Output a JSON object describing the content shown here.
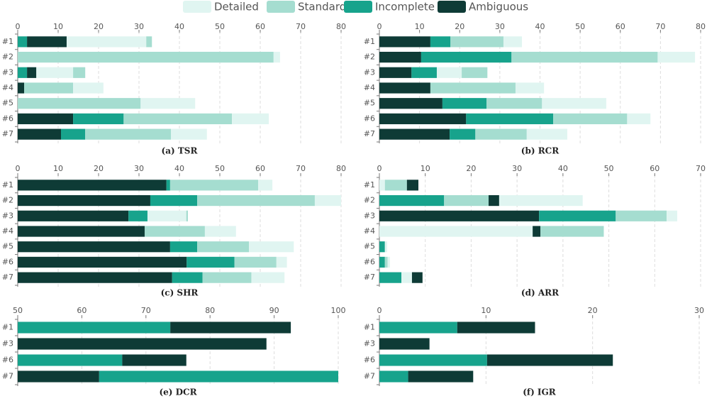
{
  "legend": [
    {
      "name": "Detailed",
      "color": "#e0f5f1"
    },
    {
      "name": "Standard",
      "color": "#a5ddd0"
    },
    {
      "name": "Incomplete",
      "color": "#17a38c"
    },
    {
      "name": "Ambiguous",
      "color": "#0e3b36"
    }
  ],
  "chart_data": [
    {
      "type": "stacked-bar",
      "title": "(a) TSR",
      "xlim": [
        0,
        80
      ],
      "xticks": [
        0,
        10,
        20,
        30,
        40,
        50,
        60,
        70,
        80
      ],
      "bars": [
        {
          "category": "#1",
          "segments": [
            {
              "series": "Incomplete",
              "value": 2.3
            },
            {
              "series": "Ambiguous",
              "value": 9.8
            },
            {
              "series": "Detailed",
              "value": 19.7
            },
            {
              "series": "Standard",
              "value": 1.4
            }
          ]
        },
        {
          "category": "#2",
          "segments": [
            {
              "series": "Standard",
              "value": 63.3
            },
            {
              "series": "Detailed",
              "value": 1.6
            }
          ]
        },
        {
          "category": "#3",
          "segments": [
            {
              "series": "Incomplete",
              "value": 2.3
            },
            {
              "series": "Ambiguous",
              "value": 2.3
            },
            {
              "series": "Detailed",
              "value": 9.1
            },
            {
              "series": "Standard",
              "value": 3.0
            }
          ]
        },
        {
          "category": "#4",
          "segments": [
            {
              "series": "Ambiguous",
              "value": 1.6
            },
            {
              "series": "Standard",
              "value": 12.1
            },
            {
              "series": "Detailed",
              "value": 7.5
            }
          ]
        },
        {
          "category": "#5",
          "segments": [
            {
              "series": "Standard",
              "value": 30.4
            },
            {
              "series": "Detailed",
              "value": 13.5
            }
          ]
        },
        {
          "category": "#6",
          "segments": [
            {
              "series": "Ambiguous",
              "value": 13.7
            },
            {
              "series": "Incomplete",
              "value": 12.5
            },
            {
              "series": "Standard",
              "value": 26.8
            },
            {
              "series": "Detailed",
              "value": 9.1
            }
          ]
        },
        {
          "category": "#7",
          "segments": [
            {
              "series": "Ambiguous",
              "value": 10.7
            },
            {
              "series": "Incomplete",
              "value": 6.0
            },
            {
              "series": "Standard",
              "value": 21.2
            },
            {
              "series": "Detailed",
              "value": 8.9
            }
          ]
        }
      ]
    },
    {
      "type": "stacked-bar",
      "title": "(b) RCR",
      "xlim": [
        0,
        80
      ],
      "xticks": [
        0,
        10,
        20,
        30,
        40,
        50,
        60,
        70,
        80
      ],
      "bars": [
        {
          "category": "#1",
          "segments": [
            {
              "series": "Ambiguous",
              "value": 12.7
            },
            {
              "series": "Incomplete",
              "value": 5.0
            },
            {
              "series": "Standard",
              "value": 13.2
            },
            {
              "series": "Detailed",
              "value": 4.6
            }
          ]
        },
        {
          "category": "#2",
          "segments": [
            {
              "series": "Ambiguous",
              "value": 10.4
            },
            {
              "series": "Incomplete",
              "value": 22.5
            },
            {
              "series": "Standard",
              "value": 36.4
            },
            {
              "series": "Detailed",
              "value": 9.3
            }
          ]
        },
        {
          "category": "#3",
          "segments": [
            {
              "series": "Ambiguous",
              "value": 8.0
            },
            {
              "series": "Incomplete",
              "value": 6.3
            },
            {
              "series": "Detailed",
              "value": 6.2
            },
            {
              "series": "Standard",
              "value": 6.4
            }
          ]
        },
        {
          "category": "#4",
          "segments": [
            {
              "series": "Ambiguous",
              "value": 12.7
            },
            {
              "series": "Standard",
              "value": 21.2
            },
            {
              "series": "Detailed",
              "value": 7.1
            }
          ]
        },
        {
          "category": "#5",
          "segments": [
            {
              "series": "Ambiguous",
              "value": 15.7
            },
            {
              "series": "Incomplete",
              "value": 11.0
            },
            {
              "series": "Standard",
              "value": 13.8
            },
            {
              "series": "Detailed",
              "value": 16.0
            }
          ]
        },
        {
          "category": "#6",
          "segments": [
            {
              "series": "Ambiguous",
              "value": 21.6
            },
            {
              "series": "Incomplete",
              "value": 21.7
            },
            {
              "series": "Standard",
              "value": 18.4
            },
            {
              "series": "Detailed",
              "value": 5.8
            }
          ]
        },
        {
          "category": "#7",
          "segments": [
            {
              "series": "Ambiguous",
              "value": 17.5
            },
            {
              "series": "Incomplete",
              "value": 6.4
            },
            {
              "series": "Standard",
              "value": 12.8
            },
            {
              "series": "Detailed",
              "value": 10.1
            }
          ]
        }
      ]
    },
    {
      "type": "stacked-bar",
      "title": "(c) SHR",
      "xlim": [
        0,
        80
      ],
      "xticks": [
        0,
        10,
        20,
        30,
        40,
        50,
        60,
        70,
        80
      ],
      "bars": [
        {
          "category": "#1",
          "segments": [
            {
              "series": "Ambiguous",
              "value": 36.8
            },
            {
              "series": "Incomplete",
              "value": 0.9
            },
            {
              "series": "Standard",
              "value": 21.8
            },
            {
              "series": "Detailed",
              "value": 3.5
            }
          ]
        },
        {
          "category": "#2",
          "segments": [
            {
              "series": "Ambiguous",
              "value": 32.8
            },
            {
              "series": "Incomplete",
              "value": 11.6
            },
            {
              "series": "Standard",
              "value": 29.1
            },
            {
              "series": "Detailed",
              "value": 6.5
            }
          ]
        },
        {
          "category": "#3",
          "segments": [
            {
              "series": "Ambiguous",
              "value": 27.4
            },
            {
              "series": "Incomplete",
              "value": 4.7
            },
            {
              "series": "Detailed",
              "value": 9.6
            },
            {
              "series": "Standard",
              "value": 0.4
            }
          ]
        },
        {
          "category": "#4",
          "segments": [
            {
              "series": "Ambiguous",
              "value": 31.4
            },
            {
              "series": "Standard",
              "value": 14.9
            },
            {
              "series": "Detailed",
              "value": 7.7
            }
          ]
        },
        {
          "category": "#5",
          "segments": [
            {
              "series": "Ambiguous",
              "value": 37.7
            },
            {
              "series": "Incomplete",
              "value": 6.7
            },
            {
              "series": "Standard",
              "value": 12.8
            },
            {
              "series": "Detailed",
              "value": 11.1
            }
          ]
        },
        {
          "category": "#6",
          "segments": [
            {
              "series": "Ambiguous",
              "value": 41.8
            },
            {
              "series": "Incomplete",
              "value": 11.8
            },
            {
              "series": "Standard",
              "value": 10.4
            },
            {
              "series": "Detailed",
              "value": 2.6
            }
          ]
        },
        {
          "category": "#7",
          "segments": [
            {
              "series": "Ambiguous",
              "value": 38.2
            },
            {
              "series": "Incomplete",
              "value": 7.5
            },
            {
              "series": "Standard",
              "value": 12.1
            },
            {
              "series": "Detailed",
              "value": 8.2
            }
          ]
        }
      ]
    },
    {
      "type": "stacked-bar",
      "title": "(d) ARR",
      "xlim": [
        0,
        70
      ],
      "xticks": [
        0,
        10,
        20,
        30,
        40,
        50,
        60,
        70
      ],
      "bars": [
        {
          "category": "#1",
          "segments": [
            {
              "series": "Detailed",
              "value": 1.2
            },
            {
              "series": "Standard",
              "value": 4.8
            },
            {
              "series": "Ambiguous",
              "value": 2.5
            }
          ]
        },
        {
          "category": "#2",
          "segments": [
            {
              "series": "Incomplete",
              "value": 14.1
            },
            {
              "series": "Standard",
              "value": 9.7
            },
            {
              "series": "Ambiguous",
              "value": 2.3
            },
            {
              "series": "Detailed",
              "value": 18.2
            }
          ]
        },
        {
          "category": "#3",
          "segments": [
            {
              "series": "Ambiguous",
              "value": 34.8
            },
            {
              "series": "Incomplete",
              "value": 16.7
            },
            {
              "series": "Standard",
              "value": 11.1
            },
            {
              "series": "Detailed",
              "value": 2.3
            }
          ]
        },
        {
          "category": "#4",
          "segments": [
            {
              "series": "Detailed",
              "value": 33.4
            },
            {
              "series": "Ambiguous",
              "value": 1.7
            },
            {
              "series": "Standard",
              "value": 13.8
            }
          ]
        },
        {
          "category": "#5",
          "segments": [
            {
              "series": "Incomplete",
              "value": 1.2
            },
            {
              "series": "Detailed",
              "value": 0.5
            }
          ]
        },
        {
          "category": "#6",
          "segments": [
            {
              "series": "Incomplete",
              "value": 1.2
            },
            {
              "series": "Standard",
              "value": 0.6
            },
            {
              "series": "Detailed",
              "value": 0.5
            }
          ]
        },
        {
          "category": "#7",
          "segments": [
            {
              "series": "Incomplete",
              "value": 4.8
            },
            {
              "series": "Detailed",
              "value": 2.3
            },
            {
              "series": "Ambiguous",
              "value": 2.3
            }
          ]
        }
      ]
    },
    {
      "type": "stacked-bar",
      "title": "(e) DCR",
      "xlim": [
        50,
        100
      ],
      "xticks": [
        50,
        60,
        70,
        80,
        90,
        100
      ],
      "bars": [
        {
          "category": "#1",
          "segments": [
            {
              "series": "Incomplete",
              "value": 73.8
            },
            {
              "series": "Ambiguous",
              "value": 18.8
            }
          ]
        },
        {
          "category": "#3",
          "segments": [
            {
              "series": "Ambiguous",
              "value": 88.8
            }
          ]
        },
        {
          "category": "#6",
          "segments": [
            {
              "series": "Incomplete",
              "value": 66.3
            },
            {
              "series": "Ambiguous",
              "value": 10.0
            }
          ]
        },
        {
          "category": "#7",
          "segments": [
            {
              "series": "Ambiguous",
              "value": 62.7
            },
            {
              "series": "Incomplete",
              "value": 37.3
            }
          ]
        }
      ]
    },
    {
      "type": "stacked-bar",
      "title": "(f) IGR",
      "xlim": [
        0,
        30
      ],
      "xticks": [
        0,
        10,
        20,
        30
      ],
      "bars": [
        {
          "category": "#1",
          "segments": [
            {
              "series": "Incomplete",
              "value": 7.3
            },
            {
              "series": "Ambiguous",
              "value": 7.3
            }
          ]
        },
        {
          "category": "#3",
          "segments": [
            {
              "series": "Ambiguous",
              "value": 4.7
            }
          ]
        },
        {
          "category": "#6",
          "segments": [
            {
              "series": "Incomplete",
              "value": 10.1
            },
            {
              "series": "Ambiguous",
              "value": 11.8
            }
          ]
        },
        {
          "category": "#7",
          "segments": [
            {
              "series": "Incomplete",
              "value": 2.7
            },
            {
              "series": "Ambiguous",
              "value": 6.1
            }
          ]
        }
      ]
    }
  ]
}
